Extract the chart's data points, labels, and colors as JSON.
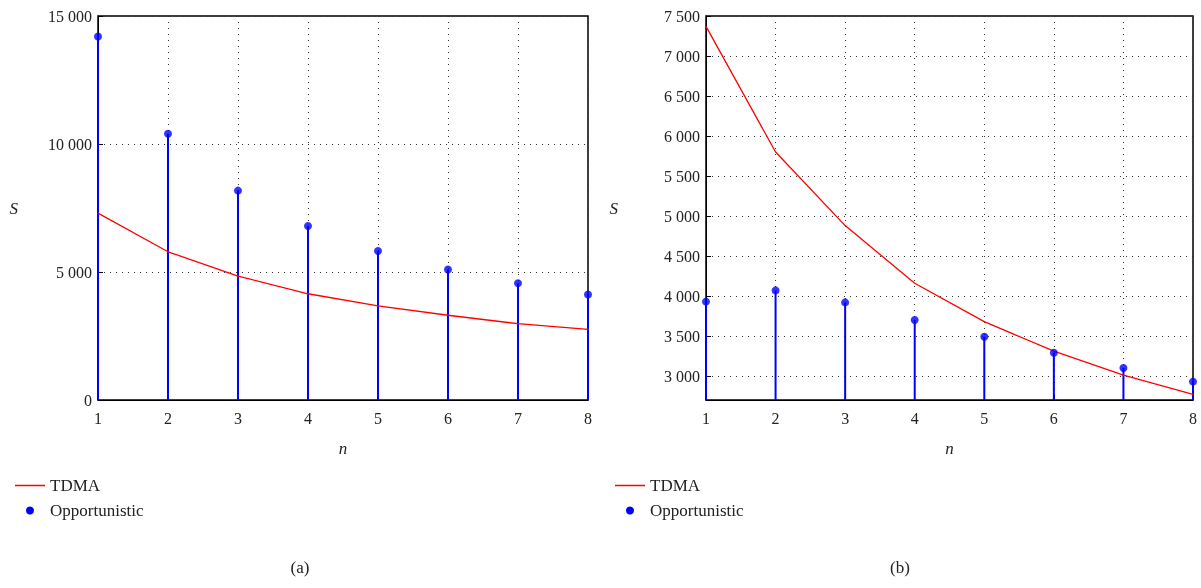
{
  "chart_data": [
    {
      "type": "line",
      "xlabel": "n",
      "ylabel": "S",
      "annotations": [
        "(a)"
      ],
      "x": [
        1,
        2,
        3,
        4,
        5,
        6,
        7,
        8
      ],
      "series": [
        {
          "name": "TDMA",
          "color": "#ff0000",
          "values": [
            7300,
            5790,
            4840,
            4150,
            3680,
            3310,
            2980,
            2760
          ]
        },
        {
          "name": "Opportunistic",
          "type": "lollipop",
          "marker": "circle",
          "color": "#0000ff",
          "values": [
            14200,
            10400,
            8180,
            6800,
            5820,
            5100,
            4560,
            4120
          ]
        }
      ],
      "xlim": [
        1,
        8
      ],
      "xticks": [
        1,
        2,
        3,
        4,
        5,
        6,
        7,
        8
      ],
      "ylim": [
        0,
        15000
      ],
      "yticks": [
        0,
        {
          "value": 5000,
          "label": "5 000"
        },
        {
          "value": 10000,
          "label": "10 000"
        },
        {
          "value": 15000,
          "label": "15 000"
        }
      ],
      "grid": true,
      "legend": "bottom left",
      "marker": "none",
      "line_style": "solid"
    },
    {
      "type": "line",
      "xlabel": "n",
      "ylabel": "S",
      "annotations": [
        "(b)"
      ],
      "x": [
        1,
        2,
        3,
        4,
        5,
        6,
        7,
        8
      ],
      "series": [
        {
          "name": "TDMA",
          "color": "#ff0000",
          "values": [
            7370,
            5800,
            4880,
            4160,
            3680,
            3310,
            3010,
            2770
          ]
        },
        {
          "name": "Opportunistic",
          "type": "lollipop",
          "marker": "circle",
          "color": "#0000ff",
          "values": [
            3930,
            4070,
            3920,
            3700,
            3490,
            3290,
            3100,
            2930
          ]
        }
      ],
      "xlim": [
        1,
        8
      ],
      "xticks": [
        1,
        2,
        3,
        4,
        5,
        6,
        7,
        8
      ],
      "ylim": [
        2700,
        7500
      ],
      "yticks": [
        {
          "value": 3000,
          "label": "3 000"
        },
        {
          "value": 3500,
          "label": "3 500"
        },
        {
          "value": 4000,
          "label": "4 000"
        },
        {
          "value": 4500,
          "label": "4 500"
        },
        {
          "value": 5000,
          "label": "5 000"
        },
        {
          "value": 5500,
          "label": "5 500"
        },
        {
          "value": 6000,
          "label": "6 000"
        },
        {
          "value": 6500,
          "label": "6 500"
        },
        {
          "value": 7000,
          "label": "7 000"
        },
        {
          "value": 7500,
          "label": "7 500"
        }
      ],
      "grid": true,
      "legend": "bottom left",
      "marker": "none",
      "line_style": "solid"
    }
  ]
}
